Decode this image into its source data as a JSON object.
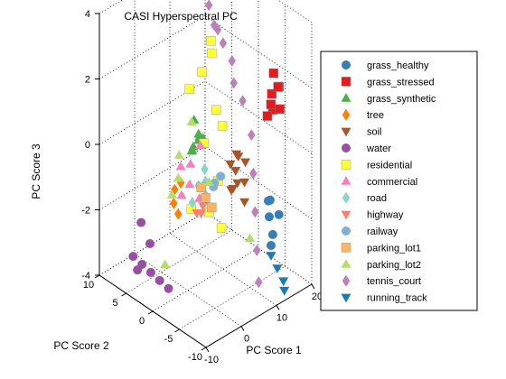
{
  "chart_data": {
    "type": "scatter",
    "projection": "3d",
    "title": "CASI Hyperspectral PC",
    "xlabel": "PC Score 1",
    "ylabel": "PC Score 2",
    "zlabel": "PC Score 3",
    "xlim": [
      -10,
      20
    ],
    "ylim": [
      -10,
      10
    ],
    "zlim": [
      -4,
      4
    ],
    "xticks": [
      "-10",
      "0",
      "10",
      "20"
    ],
    "yticks": [
      "-10",
      "-5",
      "0",
      "5",
      "10"
    ],
    "zticks": [
      "-4",
      "-2",
      "0",
      "2",
      "4"
    ],
    "grid": true,
    "legend_position": "right",
    "series": [
      {
        "name": "grass_healthy",
        "marker": "circle",
        "color": "#377eb8",
        "points": [
          [
            15,
            -6,
            -2.6
          ],
          [
            15.5,
            -5,
            -2.2
          ],
          [
            16,
            -6.5,
            -2.0
          ],
          [
            15,
            -5.5,
            -1.6
          ],
          [
            14.5,
            -6,
            -2.9
          ],
          [
            16,
            -4.5,
            -1.8
          ]
        ]
      },
      {
        "name": "grass_stressed",
        "marker": "square",
        "color": "#e41a1c",
        "points": [
          [
            18,
            -4,
            0.8
          ],
          [
            18.5,
            -3.5,
            1.2
          ],
          [
            19,
            -4.5,
            1.5
          ],
          [
            18,
            -3,
            0.5
          ],
          [
            19,
            -3.5,
            1.8
          ],
          [
            18.5,
            -5,
            0.9
          ],
          [
            17.5,
            -4,
            1.0
          ],
          [
            19.5,
            -4,
            1.4
          ]
        ]
      },
      {
        "name": "grass_synthetic",
        "marker": "triangle-up",
        "color": "#4daf4a",
        "points": [
          [
            0,
            -1,
            0.5
          ],
          [
            1,
            -1.5,
            0.8
          ],
          [
            0.5,
            -0.5,
            0.3
          ],
          [
            1.5,
            -1,
            0.6
          ],
          [
            0,
            -2,
            1.0
          ],
          [
            -0.5,
            -1,
            0.4
          ],
          [
            1,
            -0.5,
            1.2
          ],
          [
            2,
            -1.5,
            0.5
          ],
          [
            0.5,
            -2.5,
            0.9
          ]
        ]
      },
      {
        "name": "tree",
        "marker": "diamond",
        "color": "#ff7f00",
        "points": [
          [
            -1,
            2,
            -1.5
          ],
          [
            0,
            2.5,
            -1.2
          ],
          [
            -0.5,
            1.5,
            -1.8
          ],
          [
            1,
            2,
            -1.0
          ]
        ]
      },
      {
        "name": "soil",
        "marker": "triangle-down",
        "color": "#a65628",
        "points": [
          [
            9,
            -2,
            -0.5
          ],
          [
            10,
            -2.5,
            -0.2
          ],
          [
            9.5,
            -3,
            -1.0
          ],
          [
            10.5,
            -2,
            -0.8
          ],
          [
            11,
            -3.5,
            -0.4
          ],
          [
            8.5,
            -2.5,
            -1.2
          ],
          [
            10,
            -4,
            -1.5
          ],
          [
            11.5,
            -3,
            -1.1
          ],
          [
            9,
            -3.5,
            -0.1
          ],
          [
            10.5,
            -1.5,
            -1.4
          ]
        ]
      },
      {
        "name": "water",
        "marker": "circle",
        "color": "#984ea3",
        "points": [
          [
            -8,
            5,
            -3.0
          ],
          [
            -7,
            4,
            -3.2
          ],
          [
            -6,
            3,
            -3.4
          ],
          [
            -5,
            2,
            -3.6
          ],
          [
            -4,
            1,
            -3.8
          ],
          [
            -7,
            2.5,
            -2.4
          ],
          [
            -8,
            3.5,
            -1.8
          ],
          [
            -6,
            5.5,
            -3.6
          ]
        ]
      },
      {
        "name": "residential",
        "marker": "square",
        "color": "#ffff33",
        "points": [
          [
            8,
            1,
            3.0
          ],
          [
            9,
            1.5,
            2.5
          ],
          [
            7,
            2,
            2.0
          ],
          [
            8,
            0,
            1.0
          ],
          [
            6,
            1,
            0.0
          ],
          [
            9,
            -0.5,
            0.5
          ],
          [
            5,
            3,
            1.5
          ],
          [
            7,
            -1,
            -1.0
          ],
          [
            6,
            0,
            -2.0
          ],
          [
            8,
            -1,
            -2.5
          ],
          [
            4,
            2,
            -2.0
          ]
        ]
      },
      {
        "name": "commercial",
        "marker": "triangle-up",
        "color": "#f781bf",
        "points": [
          [
            2,
            1,
            -1.0
          ],
          [
            3,
            1.5,
            -0.5
          ],
          [
            4,
            0.5,
            -1.5
          ],
          [
            1,
            2,
            -0.5
          ],
          [
            5,
            1,
            0.0
          ],
          [
            2,
            2.5,
            -1.5
          ]
        ]
      },
      {
        "name": "road",
        "marker": "diamond",
        "color": "#8dd3c7",
        "points": [
          [
            3,
            0,
            -1.0
          ],
          [
            4,
            -0.5,
            -0.5
          ],
          [
            2,
            0.5,
            -1.5
          ],
          [
            5,
            0,
            -1.0
          ],
          [
            3.5,
            -1,
            -1.2
          ]
        ]
      },
      {
        "name": "highway",
        "marker": "triangle-down",
        "color": "#fb8072",
        "points": [
          [
            4,
            1,
            -2.0
          ],
          [
            5,
            0.5,
            -1.8
          ],
          [
            6,
            1.5,
            -2.2
          ]
        ]
      },
      {
        "name": "railway",
        "marker": "circle",
        "color": "#80b1d3",
        "points": [
          [
            6,
            -1,
            -1.0
          ],
          [
            7,
            -1.5,
            -0.8
          ],
          [
            6.5,
            -0.5,
            -1.2
          ]
        ]
      },
      {
        "name": "parking_lot1",
        "marker": "square",
        "color": "#fdb462",
        "points": [
          [
            5,
            0,
            -1.5
          ],
          [
            6,
            -0.5,
            -1.8
          ],
          [
            4.5,
            0.5,
            -1.2
          ]
        ]
      },
      {
        "name": "parking_lot2",
        "marker": "triangle-up",
        "color": "#b3de69",
        "points": [
          [
            -3,
            1,
            -1.0
          ],
          [
            -2,
            0.5,
            -0.5
          ],
          [
            9,
            2,
            -1.5
          ],
          [
            10,
            -5,
            -2.5
          ],
          [
            -4,
            -1,
            0.5
          ],
          [
            -2,
            -2,
            1.5
          ],
          [
            -5,
            1,
            -3.0
          ]
        ]
      },
      {
        "name": "tennis_court",
        "marker": "diamond",
        "color": "#bc80bd",
        "points": [
          [
            12,
            3,
            3.0
          ],
          [
            13,
            2,
            2.5
          ],
          [
            14,
            1,
            2.0
          ],
          [
            13,
            0,
            1.5
          ],
          [
            14,
            -1,
            1.0
          ],
          [
            15,
            -2,
            0.0
          ],
          [
            14,
            -3,
            -1.0
          ],
          [
            13,
            -4,
            -2.0
          ],
          [
            12,
            -5,
            -3.0
          ],
          [
            11,
            -6,
            -3.8
          ],
          [
            12,
            4,
            3.5
          ],
          [
            13,
            3,
            2.8
          ]
        ]
      },
      {
        "name": "running_track",
        "marker": "triangle-down",
        "color": "#1f78b4",
        "points": [
          [
            13,
            -7,
            -3.0
          ],
          [
            14,
            -7.5,
            -3.4
          ],
          [
            15,
            -8,
            -3.8
          ],
          [
            14.5,
            -8.5,
            -4.0
          ]
        ]
      }
    ]
  }
}
